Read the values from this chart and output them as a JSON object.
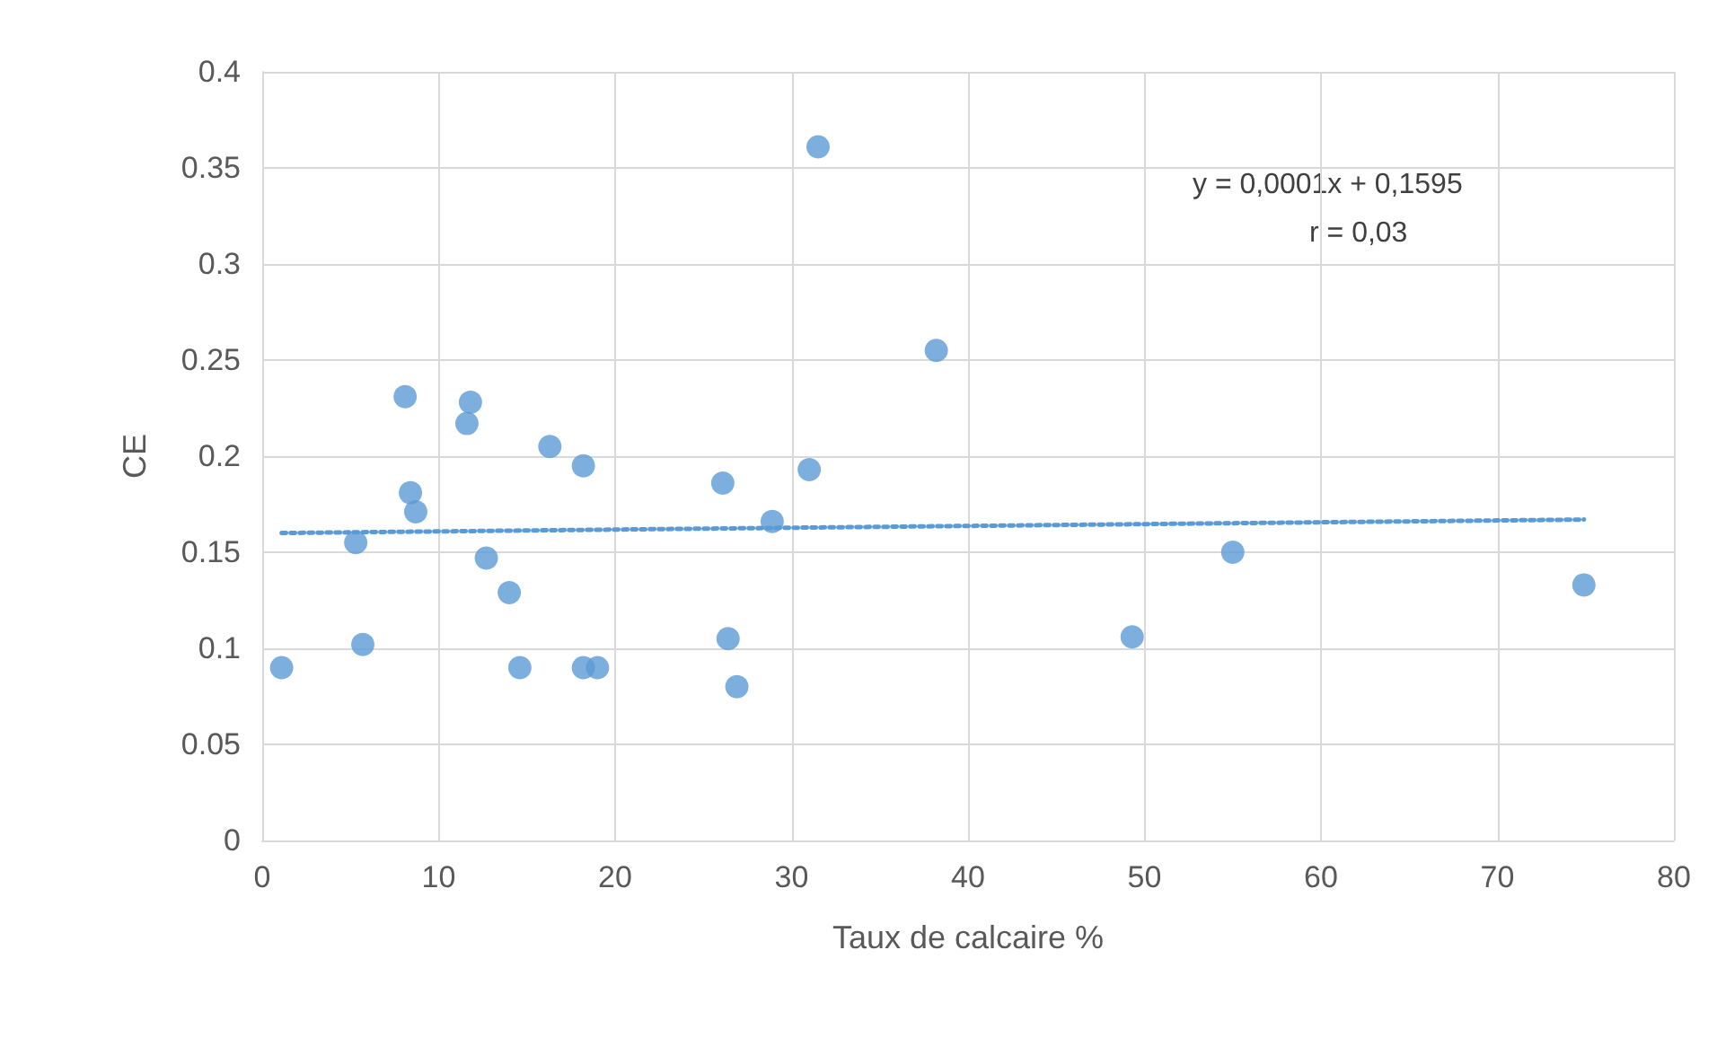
{
  "chart_data": {
    "type": "scatter",
    "xlabel": "Taux de calcaire %",
    "ylabel": "CE",
    "xlim": [
      0,
      80
    ],
    "xticks": [
      0,
      10,
      20,
      30,
      40,
      50,
      60,
      70,
      80
    ],
    "ylim": [
      0,
      0.4
    ],
    "yticks": [
      0,
      0.05,
      0.1,
      0.15,
      0.2,
      0.25,
      0.3,
      0.35,
      0.4
    ],
    "grid": true,
    "marker": "circle",
    "annotations": [
      "y = 0,0001x + 0,1595",
      "r = 0,03"
    ],
    "series": [
      {
        "color": "#5b9bd5",
        "x": [
          1.1,
          8.1,
          11.8,
          11.6,
          8.4,
          8.7,
          5.3,
          5.7,
          12.7,
          14.0,
          14.6,
          16.3,
          18.2,
          18.2,
          19.0,
          26.1,
          26.4,
          26.9,
          28.9,
          31.0,
          31.5,
          38.2,
          49.3,
          55.0,
          74.9
        ],
        "values": [
          0.09,
          0.231,
          0.228,
          0.217,
          0.181,
          0.171,
          0.155,
          0.102,
          0.147,
          0.129,
          0.09,
          0.205,
          0.195,
          0.09,
          0.09,
          0.186,
          0.105,
          0.08,
          0.166,
          0.193,
          0.361,
          0.255,
          0.106,
          0.15,
          0.133
        ]
      },
      {
        "type": "line",
        "color": "#5b9bd5",
        "line_style": "dotted",
        "marker": "none",
        "x": [
          1.1,
          74.9
        ],
        "values": [
          0.16,
          0.167
        ]
      }
    ]
  }
}
